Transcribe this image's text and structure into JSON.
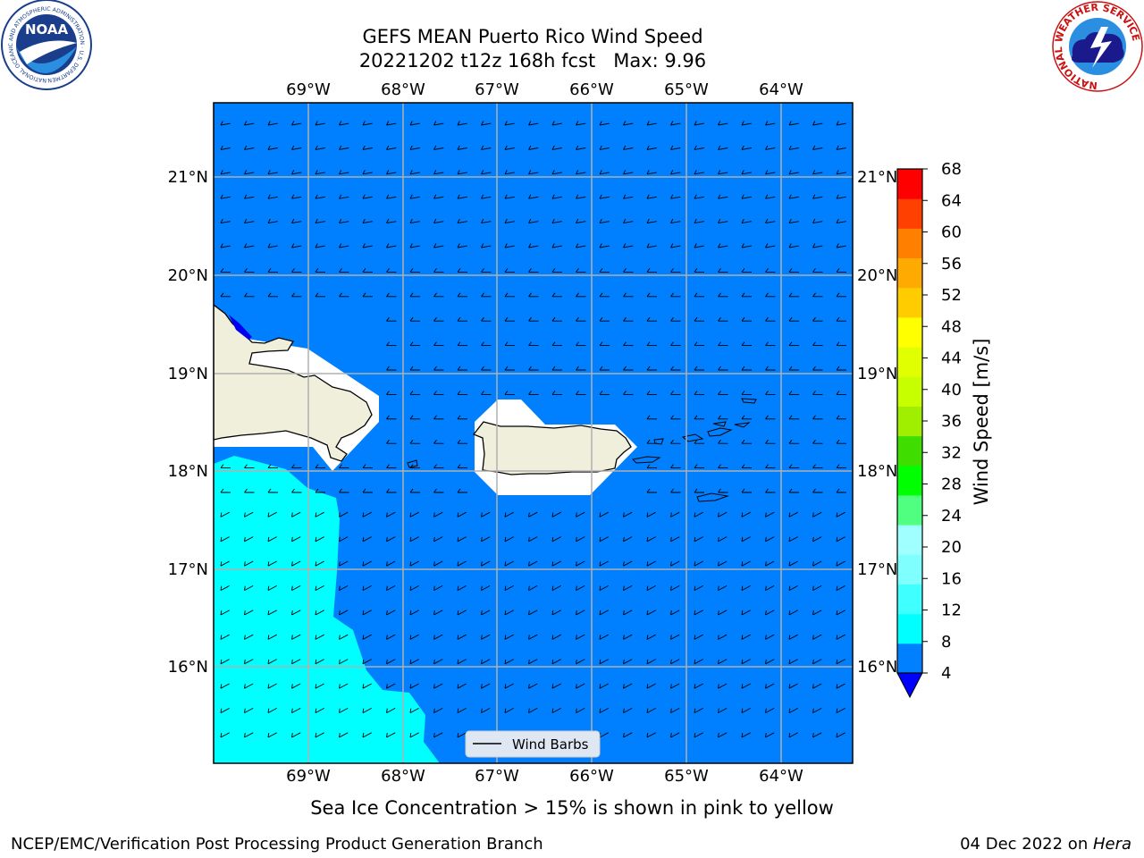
{
  "title": {
    "line1": "GEFS MEAN Puerto Rico Wind Speed",
    "line2": "20221202 t12z 168h fcst   Max: 9.96"
  },
  "map": {
    "lon_labels": [
      "69°W",
      "68°W",
      "67°W",
      "66°W",
      "65°W",
      "64°W"
    ],
    "lat_labels": [
      "21°N",
      "20°N",
      "19°N",
      "18°N",
      "17°N",
      "16°N"
    ],
    "ocean_color": "#0080ff",
    "high_wind_color": "#00ffff",
    "land_color": "#efefdb"
  },
  "legend": {
    "label": "Wind Barbs"
  },
  "colorbar": {
    "label": "Wind Speed [m/s]",
    "ticks": [
      "4",
      "8",
      "12",
      "16",
      "20",
      "24",
      "28",
      "32",
      "36",
      "40",
      "44",
      "48",
      "52",
      "56",
      "60",
      "64",
      "68"
    ],
    "colors": [
      "#0080ff",
      "#00ffff",
      "#40ffff",
      "#80ffff",
      "#a0ffff",
      "#50ff80",
      "#00ff00",
      "#40dd00",
      "#a0ee00",
      "#c8ff00",
      "#e0ff00",
      "#ffff00",
      "#ffcc00",
      "#ffaa00",
      "#ff8000",
      "#ff4000",
      "#ff0000"
    ],
    "extend_color": "#0000ff"
  },
  "note": "Sea Ice Concentration > 15% is shown in pink to yellow",
  "footer": {
    "left": "NCEP/EMC/Verification Post Processing Product Generation Branch",
    "right_date": "04 Dec 2022 on ",
    "right_machine": "Hera"
  },
  "logos": {
    "noaa_text": "NOAA",
    "noaa_ring": "NATIONAL OCEANIC AND ATMOSPHERIC ADMINISTRATION · U.S. DEPARTMENT OF COMMERCE",
    "nws_ring": "NATIONAL WEATHER SERVICE"
  }
}
